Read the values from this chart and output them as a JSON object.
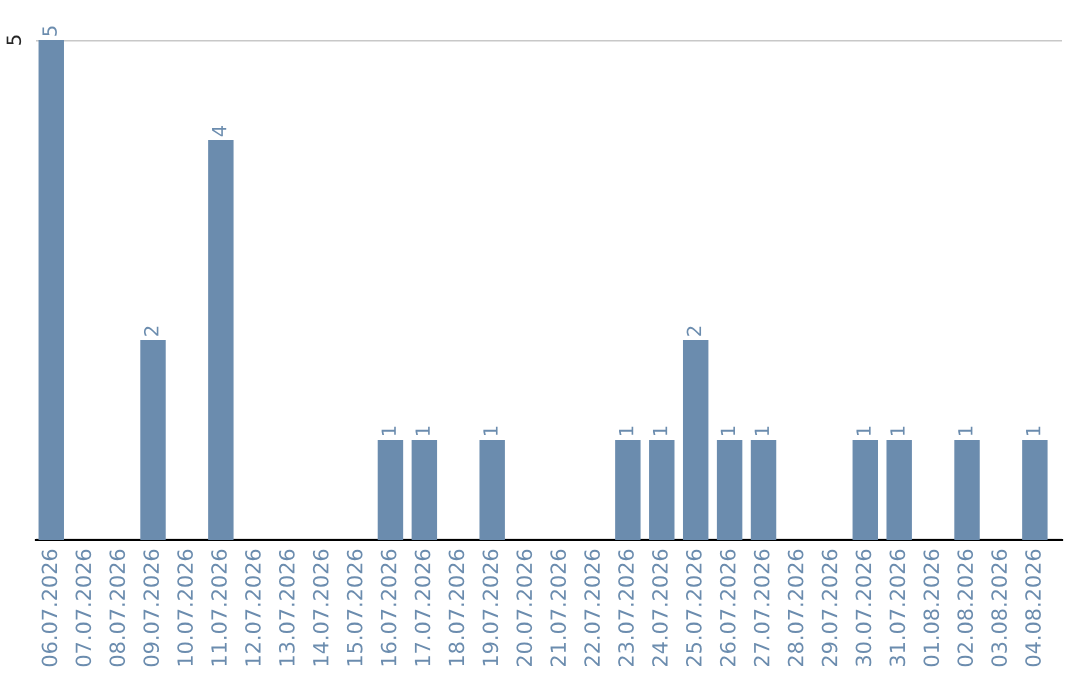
{
  "chart_data": {
    "type": "bar",
    "categories": [
      "06.07.2026",
      "07.07.2026",
      "08.07.2026",
      "09.07.2026",
      "10.07.2026",
      "11.07.2026",
      "12.07.2026",
      "13.07.2026",
      "14.07.2026",
      "15.07.2026",
      "16.07.2026",
      "17.07.2026",
      "18.07.2026",
      "19.07.2026",
      "20.07.2026",
      "21.07.2026",
      "22.07.2026",
      "23.07.2026",
      "24.07.2026",
      "25.07.2026",
      "26.07.2026",
      "27.07.2026",
      "28.07.2026",
      "29.07.2026",
      "30.07.2026",
      "31.07.2026",
      "01.08.2026",
      "02.08.2026",
      "03.08.2026",
      "04.08.2026"
    ],
    "values": [
      5,
      null,
      null,
      2,
      null,
      4,
      null,
      null,
      null,
      null,
      1,
      1,
      null,
      1,
      null,
      null,
      null,
      1,
      1,
      2,
      1,
      1,
      null,
      null,
      1,
      1,
      null,
      1,
      null,
      1
    ],
    "value_labels": [
      "5",
      null,
      null,
      "2",
      null,
      "4",
      null,
      null,
      null,
      null,
      "1",
      "1",
      null,
      "1",
      null,
      null,
      null,
      "1",
      "1",
      "2",
      "1",
      "1",
      null,
      null,
      "1",
      "1",
      null,
      "1",
      null,
      "1"
    ],
    "color": "#6b8cae",
    "ylim": [
      0,
      5
    ],
    "yticks": [
      {
        "value": 0,
        "label": null
      },
      5
    ],
    "grid": "y"
  }
}
